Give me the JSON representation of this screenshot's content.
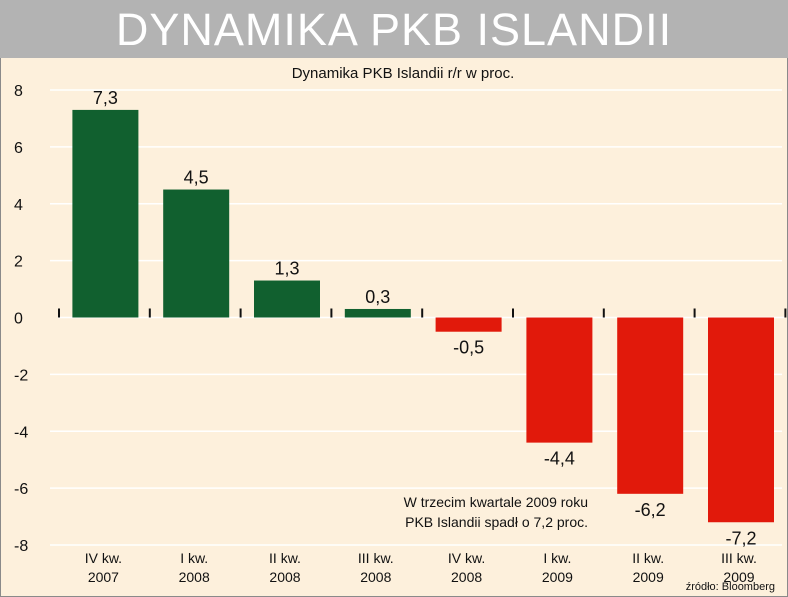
{
  "header": {
    "title": "DYNAMIKA PKB ISLANDII"
  },
  "colors": {
    "positive": "#11602f",
    "negative": "#e1190b",
    "background": "#fdf0dc",
    "title_bar": "#b3b3b3"
  },
  "chart_data": {
    "type": "bar",
    "title": "Dynamika PKB Islandii r/r w proc.",
    "categories": [
      [
        "IV kw.",
        "2007"
      ],
      [
        "I kw.",
        "2008"
      ],
      [
        "II kw.",
        "2008"
      ],
      [
        "III kw.",
        "2008"
      ],
      [
        "IV kw.",
        "2008"
      ],
      [
        "I kw.",
        "2009"
      ],
      [
        "II kw.",
        "2009"
      ],
      [
        "III kw.",
        "2009"
      ]
    ],
    "values": [
      7.3,
      4.5,
      1.3,
      0.3,
      -0.5,
      -4.4,
      -6.2,
      -7.2
    ],
    "value_labels": [
      "7,3",
      "4,5",
      "1,3",
      "0,3",
      "-0,5",
      "-4,4",
      "-6,2",
      "-7,2"
    ],
    "ylim": [
      -8,
      8
    ],
    "yticks": [
      8,
      6,
      4,
      2,
      0,
      -2,
      -4,
      -6,
      -8
    ],
    "grid": true,
    "annotation": [
      "W trzecim kwartale 2009 roku",
      "PKB Islandii spadł o 7,2 proc."
    ],
    "source": "źródło: Bloomberg"
  }
}
